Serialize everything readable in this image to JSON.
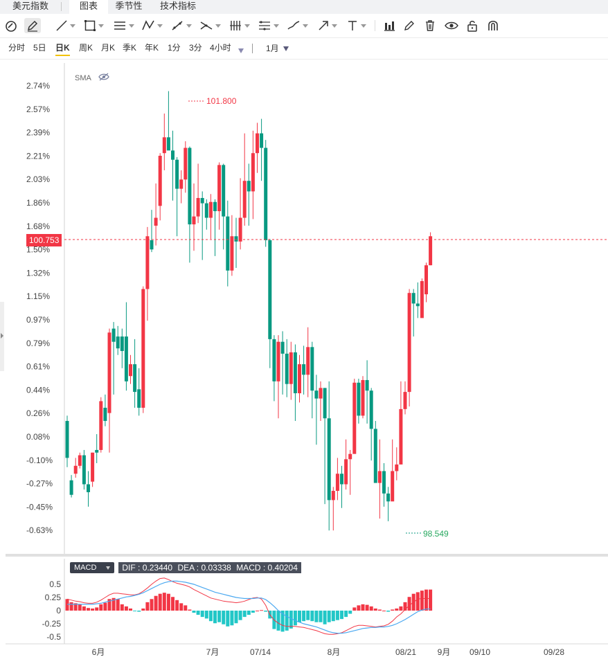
{
  "tabs": [
    {
      "label": "美元指数",
      "active": false
    },
    {
      "label": "图表",
      "active": true
    },
    {
      "label": "季节性",
      "active": false
    },
    {
      "label": "技术指标",
      "active": false
    }
  ],
  "toolbar_icons": [
    "magnet-icon",
    "pencil-icon",
    "trend-line-icon",
    "rectangle-icon",
    "horizontal-lines-icon",
    "pattern-icon",
    "measure-icon",
    "fib-icon",
    "vertical-lines-icon",
    "parallel-channel-icon",
    "brush-icon",
    "arrow-icon",
    "text-icon",
    "bar-chart-icon",
    "edit-icon",
    "trash-icon",
    "eye-icon",
    "lock-icon",
    "magnet-u-icon"
  ],
  "periods": [
    "分时",
    "5日",
    "日K",
    "周K",
    "月K",
    "季K",
    "年K",
    "1分",
    "3分",
    "4小时"
  ],
  "active_period": "日K",
  "range_select": "1月",
  "indicator": {
    "name": "SMA"
  },
  "price_tag": "100.753",
  "high_label": "101.800",
  "low_label": "98.549",
  "macd": {
    "button": "MACD",
    "dif": "DIF : 0.23440",
    "dea": "DEA : 0.03338",
    "macd": "MACD : 0.40204"
  },
  "colors": {
    "up": "#f23645",
    "down": "#089981",
    "dif": "#f23645",
    "dea": "#4aa8f0",
    "hist_up": "#f23645",
    "hist_down": "#22c7c7"
  },
  "chart_data": {
    "type": "candlestick",
    "y_ticks": [
      "2.74%",
      "2.57%",
      "2.39%",
      "2.21%",
      "2.03%",
      "1.86%",
      "1.68%",
      "1.50%",
      "1.32%",
      "1.15%",
      "0.97%",
      "0.79%",
      "0.61%",
      "0.44%",
      "0.26%",
      "0.08%",
      "-0.10%",
      "-0.27%",
      "-0.45%",
      "-0.63%"
    ],
    "x_ticks": [
      "6月",
      "7月",
      "07/14",
      "8月",
      "08/21",
      "9月",
      "09/10",
      "09/28"
    ],
    "candles": [
      [
        0.2,
        -0.08,
        0.24,
        -0.15
      ],
      [
        -0.25,
        -0.36,
        -0.21,
        -0.38
      ],
      [
        -0.2,
        -0.14,
        -0.08,
        -0.23
      ],
      [
        -0.14,
        -0.06,
        -0.04,
        -0.16
      ],
      [
        -0.06,
        -0.28,
        -0.02,
        -0.32
      ],
      [
        -0.28,
        -0.34,
        -0.18,
        -0.45
      ],
      [
        -0.26,
        -0.04,
        -0.04,
        -0.3
      ],
      [
        -0.02,
        -0.04,
        0.1,
        -0.12
      ],
      [
        -0.02,
        0.35,
        0.38,
        -0.04
      ],
      [
        0.3,
        0.2,
        0.4,
        0.16
      ],
      [
        0.26,
        0.87,
        0.9,
        -0.04
      ],
      [
        0.9,
        0.8,
        0.95,
        0.4
      ],
      [
        0.84,
        0.75,
        0.92,
        0.7
      ],
      [
        0.84,
        0.73,
        0.9,
        0.6
      ],
      [
        0.84,
        0.5,
        1.1,
        0.43
      ],
      [
        0.54,
        0.63,
        0.7,
        0.48
      ],
      [
        0.63,
        0.42,
        0.82,
        0.3
      ],
      [
        0.44,
        0.3,
        0.6,
        0.24
      ],
      [
        0.3,
        1.2,
        1.22,
        0.26
      ],
      [
        1.2,
        1.6,
        1.67,
        0.96
      ],
      [
        1.57,
        1.5,
        1.8,
        1.48
      ],
      [
        1.68,
        1.74,
        2.0,
        1.53
      ],
      [
        1.83,
        2.21,
        2.23,
        1.72
      ],
      [
        2.23,
        2.35,
        2.53,
        2.1
      ],
      [
        2.35,
        2.25,
        2.7,
        2.3
      ],
      [
        2.25,
        2.18,
        2.4,
        1.87
      ],
      [
        2.18,
        1.96,
        2.2,
        1.6
      ],
      [
        1.96,
        2.03,
        2.1,
        1.85
      ],
      [
        2.03,
        2.27,
        2.32,
        1.93
      ],
      [
        2.27,
        1.69,
        2.28,
        1.4
      ],
      [
        1.69,
        1.75,
        2.0,
        1.49
      ],
      [
        1.75,
        1.89,
        2.15,
        1.7
      ],
      [
        1.89,
        1.85,
        1.94,
        1.42
      ],
      [
        1.85,
        1.74,
        1.88,
        1.65
      ],
      [
        1.74,
        1.86,
        1.92,
        1.58
      ],
      [
        1.86,
        1.79,
        1.88,
        1.45
      ],
      [
        1.79,
        2.14,
        2.16,
        1.65
      ],
      [
        2.14,
        1.75,
        2.15,
        1.5
      ],
      [
        1.75,
        1.34,
        1.87,
        1.22
      ],
      [
        1.34,
        1.6,
        1.76,
        1.3
      ],
      [
        1.6,
        1.56,
        1.74,
        1.36
      ],
      [
        1.56,
        1.74,
        2.04,
        1.5
      ],
      [
        1.74,
        2.02,
        2.38,
        1.68
      ],
      [
        2.02,
        1.94,
        2.15,
        1.68
      ],
      [
        1.94,
        2.23,
        2.4,
        1.73
      ],
      [
        2.23,
        2.38,
        2.46,
        2.08
      ],
      [
        2.38,
        2.27,
        2.49,
        2.02
      ],
      [
        2.27,
        1.57,
        2.33,
        1.52
      ],
      [
        1.57,
        0.82,
        1.58,
        0.6
      ],
      [
        0.82,
        0.5,
        0.85,
        0.35
      ],
      [
        0.5,
        0.8,
        0.85,
        0.22
      ],
      [
        0.8,
        0.71,
        0.88,
        0.4
      ],
      [
        0.71,
        0.48,
        0.82,
        0.38
      ],
      [
        0.48,
        0.72,
        0.8,
        0.36
      ],
      [
        0.72,
        0.41,
        0.78,
        0.2
      ],
      [
        0.41,
        0.63,
        0.7,
        0.34
      ],
      [
        0.63,
        0.55,
        0.77,
        0.4
      ],
      [
        0.55,
        0.76,
        0.91,
        0.38
      ],
      [
        0.76,
        0.43,
        0.8,
        0.22
      ],
      [
        0.43,
        0.37,
        0.55,
        0.02
      ],
      [
        0.37,
        0.45,
        0.5,
        0.2
      ],
      [
        0.45,
        0.22,
        0.45,
        -0.43
      ],
      [
        0.22,
        -0.4,
        0.5,
        -0.63
      ],
      [
        -0.4,
        -0.33,
        -0.3,
        -0.63
      ],
      [
        -0.33,
        -0.2,
        -0.08,
        -0.4
      ],
      [
        -0.2,
        -0.28,
        -0.14,
        -0.46
      ],
      [
        -0.28,
        -0.09,
        0.06,
        -0.32
      ],
      [
        -0.09,
        -0.05,
        -0.02,
        -0.36
      ],
      [
        -0.05,
        0.49,
        0.52,
        0.3
      ],
      [
        0.49,
        0.24,
        0.52,
        0.18
      ],
      [
        0.24,
        0.51,
        0.54,
        0.22
      ],
      [
        0.51,
        0.43,
        0.66,
        0.18
      ],
      [
        0.43,
        0.14,
        0.45,
        -0.1
      ],
      [
        0.14,
        -0.27,
        0.2,
        -0.22
      ],
      [
        -0.27,
        -0.18,
        0.06,
        -0.54
      ],
      [
        -0.18,
        -0.35,
        -0.12,
        -0.45
      ],
      [
        -0.35,
        -0.41,
        -0.3,
        -0.56
      ],
      [
        -0.41,
        -0.18,
        0.06,
        -0.22
      ],
      [
        -0.18,
        -0.13,
        0.0,
        -0.25
      ],
      [
        -0.13,
        0.29,
        0.5,
        0.06
      ],
      [
        0.29,
        0.42,
        0.5,
        0.25
      ],
      [
        0.42,
        1.17,
        1.2,
        0.31
      ],
      [
        1.17,
        1.09,
        1.2,
        0.84
      ],
      [
        1.09,
        1.07,
        1.25,
        0.98
      ],
      [
        0.98,
        1.26,
        1.28,
        1.02
      ],
      [
        1.16,
        1.38,
        1.4,
        1.1
      ],
      [
        1.38,
        1.6,
        1.63,
        1.38
      ]
    ],
    "macd_hist": [
      0.22,
      0.16,
      0.14,
      0.12,
      0.08,
      0.05,
      0.04,
      0.06,
      0.12,
      0.15,
      0.22,
      0.24,
      0.22,
      0.12,
      0.08,
      0.04,
      -0.01,
      -0.02,
      0.04,
      0.16,
      0.22,
      0.28,
      0.32,
      0.34,
      0.32,
      0.26,
      0.2,
      0.14,
      0.1,
      0.02,
      -0.04,
      -0.08,
      -0.12,
      -0.15,
      -0.2,
      -0.24,
      -0.22,
      -0.26,
      -0.3,
      -0.28,
      -0.24,
      -0.18,
      -0.12,
      -0.08,
      -0.04,
      0.0,
      0.01,
      -0.02,
      -0.15,
      -0.35,
      -0.38,
      -0.4,
      -0.38,
      -0.34,
      -0.28,
      -0.22,
      -0.2,
      -0.18,
      -0.2,
      -0.22,
      -0.22,
      -0.26,
      -0.22,
      -0.2,
      -0.18,
      -0.16,
      -0.12,
      -0.06,
      0.06,
      0.1,
      0.12,
      0.11,
      0.08,
      0.04,
      0.02,
      0.0,
      -0.02,
      0.02,
      0.04,
      0.08,
      0.16,
      0.26,
      0.32,
      0.35,
      0.38,
      0.4,
      0.4
    ],
    "macd_dif": [
      0.22,
      0.2,
      0.18,
      0.17,
      0.15,
      0.14,
      0.14,
      0.16,
      0.2,
      0.25,
      0.3,
      0.33,
      0.33,
      0.32,
      0.31,
      0.3,
      0.3,
      0.32,
      0.37,
      0.43,
      0.5,
      0.56,
      0.61,
      0.62,
      0.59,
      0.55,
      0.52,
      0.5,
      0.48,
      0.45,
      0.4,
      0.36,
      0.32,
      0.28,
      0.24,
      0.22,
      0.2,
      0.18,
      0.17,
      0.16,
      0.15,
      0.16,
      0.18,
      0.21,
      0.24,
      0.25,
      0.22,
      0.1,
      -0.08,
      -0.18,
      -0.24,
      -0.28,
      -0.3,
      -0.3,
      -0.3,
      -0.31,
      -0.32,
      -0.34,
      -0.36,
      -0.38,
      -0.41,
      -0.44,
      -0.45,
      -0.45,
      -0.44,
      -0.42,
      -0.38,
      -0.34,
      -0.3,
      -0.28,
      -0.28,
      -0.29,
      -0.3,
      -0.31,
      -0.3,
      -0.29,
      -0.26,
      -0.2,
      -0.12,
      -0.06,
      0.02,
      0.1,
      0.16,
      0.22,
      0.23,
      0.23,
      0.23
    ],
    "macd_dea": [
      0.12,
      0.12,
      0.12,
      0.12,
      0.12,
      0.12,
      0.12,
      0.13,
      0.14,
      0.16,
      0.18,
      0.2,
      0.22,
      0.24,
      0.26,
      0.27,
      0.29,
      0.31,
      0.34,
      0.38,
      0.42,
      0.46,
      0.5,
      0.53,
      0.55,
      0.56,
      0.56,
      0.55,
      0.54,
      0.52,
      0.5,
      0.47,
      0.44,
      0.41,
      0.38,
      0.35,
      0.33,
      0.31,
      0.29,
      0.27,
      0.25,
      0.24,
      0.23,
      0.23,
      0.23,
      0.24,
      0.24,
      0.21,
      0.15,
      0.08,
      0.0,
      -0.06,
      -0.11,
      -0.15,
      -0.19,
      -0.22,
      -0.25,
      -0.27,
      -0.29,
      -0.31,
      -0.34,
      -0.37,
      -0.4,
      -0.42,
      -0.43,
      -0.43,
      -0.42,
      -0.4,
      -0.38,
      -0.36,
      -0.34,
      -0.33,
      -0.32,
      -0.32,
      -0.31,
      -0.31,
      -0.3,
      -0.28,
      -0.25,
      -0.21,
      -0.17,
      -0.12,
      -0.07,
      -0.02,
      0.01,
      0.03,
      0.03
    ],
    "macd_y_ticks": [
      "0.5",
      "0.25",
      "0",
      "-0.25",
      "-0.5"
    ]
  }
}
